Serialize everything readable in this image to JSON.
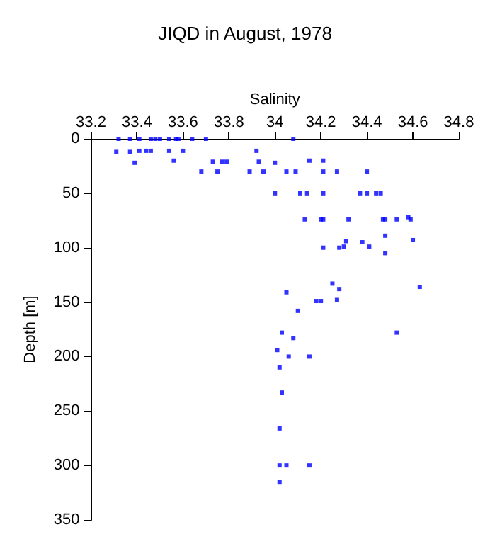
{
  "chart_data": {
    "type": "scatter",
    "title": "JIQD in August, 1978",
    "xlabel": "Salinity",
    "ylabel": "Depth [m]",
    "x": [
      33.32,
      33.37,
      33.41,
      33.46,
      33.48,
      33.5,
      33.54,
      33.57,
      33.58,
      33.64,
      33.7,
      34.08,
      33.31,
      33.37,
      33.41,
      33.44,
      33.46,
      33.54,
      33.6,
      33.39,
      33.56,
      33.73,
      33.77,
      33.79,
      33.92,
      33.93,
      34.0,
      34.15,
      34.21,
      33.68,
      33.75,
      33.89,
      33.95,
      34.05,
      34.09,
      34.21,
      34.27,
      34.4,
      34.0,
      34.11,
      34.14,
      34.21,
      34.37,
      34.4,
      34.44,
      34.46,
      34.13,
      34.2,
      34.21,
      34.32,
      34.47,
      34.48,
      34.53,
      34.58,
      34.59,
      34.48,
      34.6,
      34.21,
      34.28,
      34.3,
      34.31,
      34.38,
      34.41,
      34.48,
      34.25,
      34.28,
      34.63,
      34.05,
      34.18,
      34.2,
      34.27,
      34.1,
      34.03,
      34.08,
      34.53,
      34.01,
      34.06,
      34.15,
      34.02,
      34.03,
      34.02,
      34.02,
      34.05,
      34.15,
      34.02
    ],
    "values": [
      0,
      0,
      0,
      0,
      0,
      0,
      0,
      0,
      0,
      0,
      0,
      0,
      12,
      12,
      11,
      11,
      11,
      11,
      11,
      22,
      20,
      21,
      21,
      21,
      11,
      21,
      22,
      20,
      20,
      30,
      30,
      30,
      30,
      30,
      30,
      30,
      30,
      30,
      50,
      50,
      50,
      50,
      50,
      50,
      50,
      50,
      74,
      74,
      74,
      74,
      74,
      74,
      74,
      72,
      74,
      89,
      93,
      100,
      100,
      99,
      94,
      95,
      99,
      105,
      133,
      138,
      136,
      141,
      149,
      149,
      148,
      158,
      178,
      183,
      178,
      194,
      200,
      200,
      210,
      233,
      266,
      300,
      300,
      300,
      315
    ],
    "color": "#0000ff",
    "marker": "square",
    "xlim": [
      33.2,
      34.8
    ],
    "xticks": [
      33.2,
      33.4,
      33.6,
      33.8,
      34,
      34.2,
      34.4,
      34.6,
      34.8
    ],
    "ylim": [
      350,
      0
    ],
    "yticks": [
      0,
      50,
      100,
      150,
      200,
      250,
      300,
      350
    ],
    "grid": false
  }
}
